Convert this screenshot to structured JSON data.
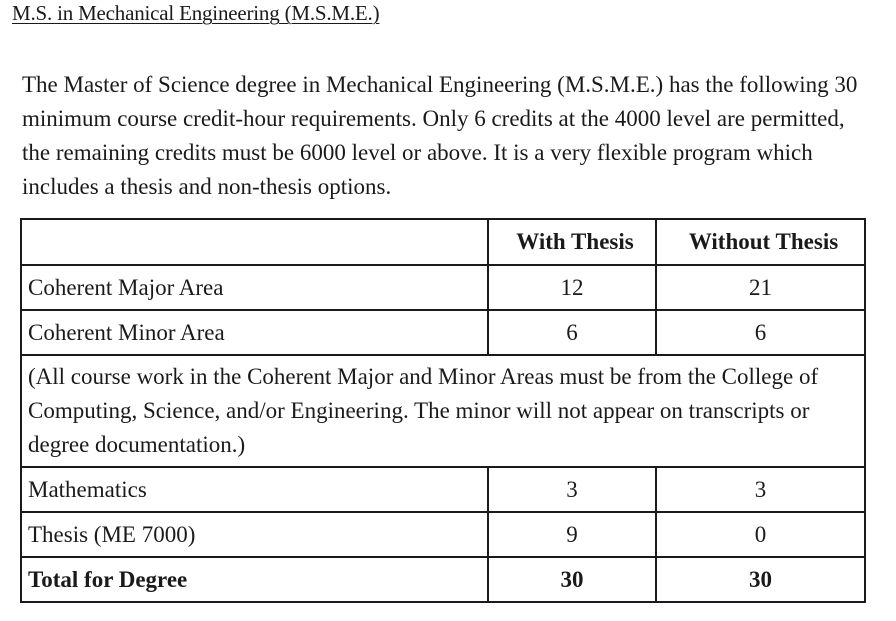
{
  "heading": "M.S. in Mechanical Engineering (M.S.M.E.)",
  "intro": "The Master of Science degree in Mechanical Engineering (M.S.M.E.) has the following 30 minimum course credit-hour requirements. Only 6 credits at the 4000 level are permitted, the remaining credits must be 6000 level or above. It is a very flexible program which includes a thesis and non-thesis options.",
  "table": {
    "headers": [
      "",
      "With Thesis",
      "Without Thesis"
    ],
    "rows": [
      {
        "label": "Coherent Major Area",
        "with_thesis": "12",
        "without_thesis": "21"
      },
      {
        "label": "Coherent Minor Area",
        "with_thesis": "6",
        "without_thesis": "6"
      }
    ],
    "note": "(All course work in the Coherent Major and Minor Areas must be from the College of Computing, Science, and/or Engineering. The minor will not appear on transcripts or degree documentation.)",
    "rows_after": [
      {
        "label": "Mathematics",
        "with_thesis": "3",
        "without_thesis": "3"
      },
      {
        "label": "Thesis (ME 7000)",
        "with_thesis": "9",
        "without_thesis": "0"
      }
    ],
    "total": {
      "label": "Total for Degree",
      "with_thesis": "30",
      "without_thesis": "30"
    }
  }
}
